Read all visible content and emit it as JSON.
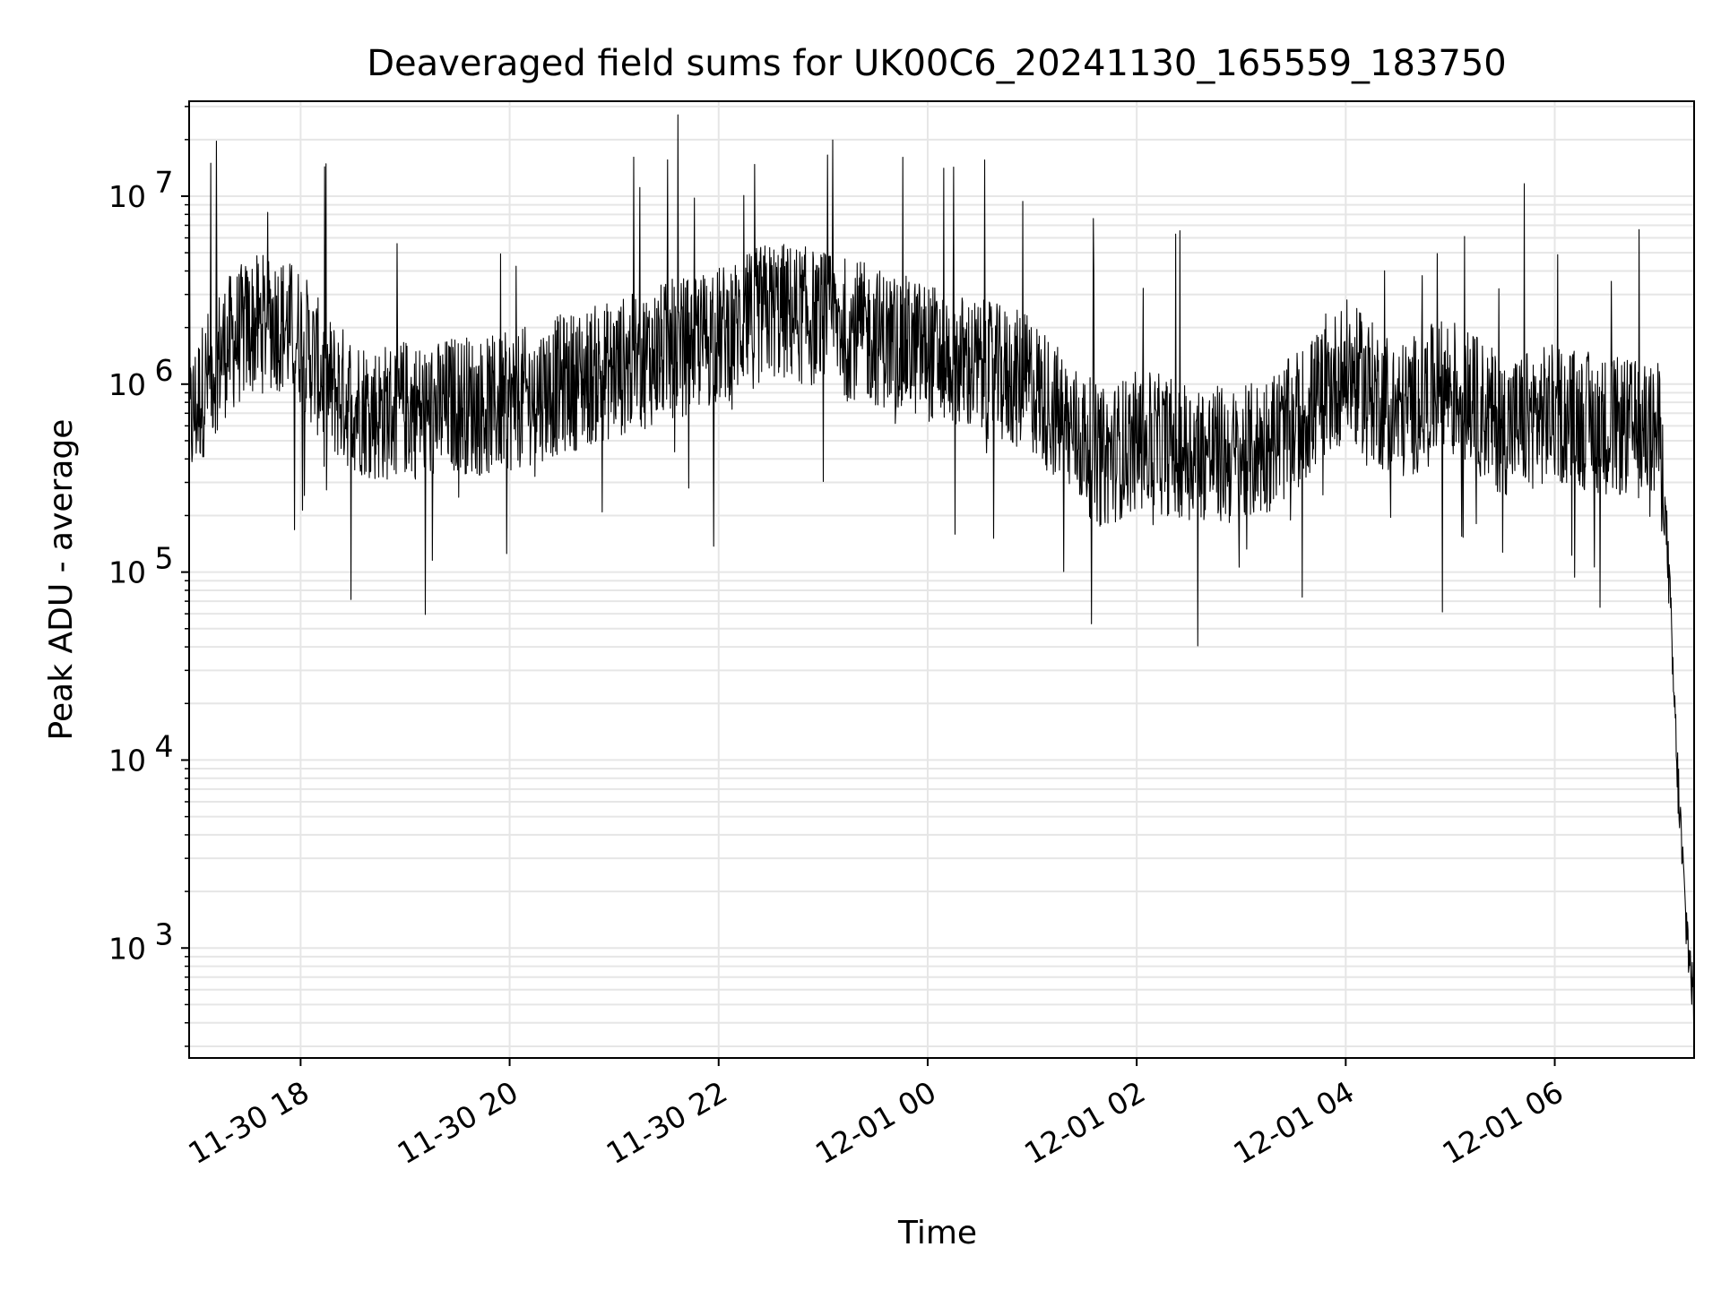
{
  "chart_data": {
    "type": "line",
    "title": "Deaveraged field sums for UK00C6_20241130_165559_183750",
    "xlabel": "Time",
    "ylabel": "Peak ADU - average",
    "y_scale": "log",
    "ylim": [
      260,
      32000000
    ],
    "xlim": [
      "2024-11-30 16:56",
      "2024-12-01 07:20"
    ],
    "grid": true,
    "line_color": "#000000",
    "grid_color": "#e6e6e6",
    "x_ticks": [
      {
        "t": "2024-11-30 18:00",
        "label": "11-30 18"
      },
      {
        "t": "2024-11-30 20:00",
        "label": "11-30 20"
      },
      {
        "t": "2024-11-30 22:00",
        "label": "11-30 22"
      },
      {
        "t": "2024-12-01 00:00",
        "label": "12-01 00"
      },
      {
        "t": "2024-12-01 02:00",
        "label": "12-01 02"
      },
      {
        "t": "2024-12-01 04:00",
        "label": "12-01 04"
      },
      {
        "t": "2024-12-01 06:00",
        "label": "12-01 06"
      }
    ],
    "y_ticks": [
      {
        "value": 1000,
        "base": "10",
        "exp": "3"
      },
      {
        "value": 10000,
        "base": "10",
        "exp": "4"
      },
      {
        "value": 100000,
        "base": "10",
        "exp": "5"
      },
      {
        "value": 1000000,
        "base": "10",
        "exp": "6"
      },
      {
        "value": 10000000,
        "base": "10",
        "exp": "7"
      }
    ],
    "series": [
      {
        "x": [
          "2024-11-30 16:56",
          "2024-11-30 17:05",
          "2024-11-30 17:15",
          "2024-11-30 17:30",
          "2024-11-30 17:45",
          "2024-11-30 18:00",
          "2024-11-30 18:15",
          "2024-11-30 18:30",
          "2024-11-30 18:45",
          "2024-11-30 19:00",
          "2024-11-30 19:15",
          "2024-11-30 19:30",
          "2024-11-30 19:45",
          "2024-11-30 20:00",
          "2024-11-30 20:30",
          "2024-11-30 21:00",
          "2024-11-30 21:30",
          "2024-11-30 22:00",
          "2024-11-30 22:30",
          "2024-11-30 23:00",
          "2024-11-30 23:30",
          "2024-12-01 00:00",
          "2024-12-01 00:30",
          "2024-12-01 01:00",
          "2024-12-01 01:20",
          "2024-12-01 01:40",
          "2024-12-01 02:00",
          "2024-12-01 02:30",
          "2024-12-01 03:00",
          "2024-12-01 03:30",
          "2024-12-01 04:00",
          "2024-12-01 04:30",
          "2024-12-01 05:00",
          "2024-12-01 05:30",
          "2024-12-01 06:00",
          "2024-12-01 06:30",
          "2024-12-01 07:00",
          "2024-12-01 07:05",
          "2024-12-01 07:10",
          "2024-12-01 07:15",
          "2024-12-01 07:20"
        ],
        "y": [
          600000,
          1000000,
          1500000,
          2000000,
          2200000,
          1800000,
          1000000,
          800000,
          700000,
          750000,
          700000,
          800000,
          750000,
          800000,
          1000000,
          1200000,
          1500000,
          1800000,
          2500000,
          2200000,
          1800000,
          1500000,
          1200000,
          1000000,
          600000,
          400000,
          500000,
          450000,
          400000,
          600000,
          1200000,
          700000,
          1000000,
          600000,
          700000,
          600000,
          550000,
          120000,
          10000,
          1500,
          500
        ]
      }
    ]
  }
}
